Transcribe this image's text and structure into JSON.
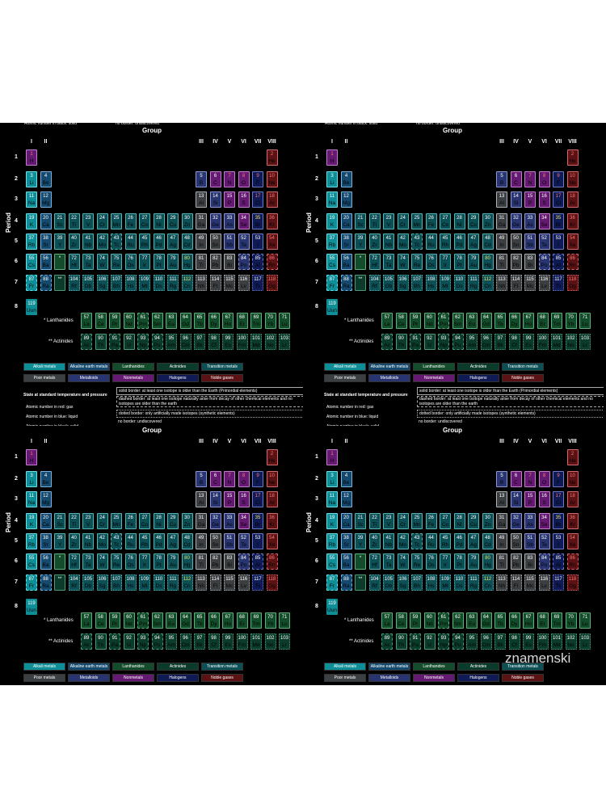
{
  "header": {
    "group_title": "Group",
    "period_title": "Period",
    "top_cut_left": "Atomic number in black: solid",
    "top_cut_right": "no border: undiscovered"
  },
  "groups_left": [
    "I",
    "II"
  ],
  "groups_right": [
    "III",
    "IV",
    "V",
    "VI",
    "VII",
    "VIII"
  ],
  "periods": [
    "1",
    "2",
    "3",
    "4",
    "5",
    "6",
    "7",
    "8"
  ],
  "series_labels": {
    "lanthanides": "* Lanthanides",
    "actinides": "** Actinides"
  },
  "markers": {
    "lan": "*",
    "act": "**"
  },
  "legend": [
    {
      "label": "Alkali metals",
      "type": "alkali"
    },
    {
      "label": "Alkaline earth metals",
      "type": "alkaline"
    },
    {
      "label": "Lanthanides",
      "type": "lan"
    },
    {
      "label": "Actinides",
      "type": "act"
    },
    {
      "label": "Transition metals",
      "type": "trans"
    },
    {
      "label": "Poor metals",
      "type": "poor"
    },
    {
      "label": "Metalloids",
      "type": "metalloid"
    },
    {
      "label": "Nonmetals",
      "type": "nonmetal"
    },
    {
      "label": "Halogens",
      "type": "halogen"
    },
    {
      "label": "Noble gases",
      "type": "noble"
    }
  ],
  "state": {
    "title": "State at standard temperature and pressure",
    "gas": "Atomic number in red: gas",
    "liquid": "Atomic number in blue: liquid",
    "solid": "Atomic number in black: solid"
  },
  "borders": {
    "solid": "solid border: at least one isotope is older than the Earth (Primordial elements)",
    "dashed": "dashed border: at least one isotope naturally arise from decay of other chemical elements and no isotopes are older than the earth",
    "dotted": "dotted border: only artificially made isotopes (synthetic elements)",
    "none": "no border: undiscovered"
  },
  "watermark": "znamenski",
  "colors": {
    "alkali": "#0e8f97",
    "alkaline": "#154a6e",
    "trans": "#0c4f55",
    "lan": "#134c2a",
    "act": "#0b3b2a",
    "poor": "#3c3f42",
    "metalloid": "#283570",
    "nonmetal": "#651a72",
    "halogen": "#101a55",
    "noble": "#5a1214",
    "gas": "#ff7676",
    "liquid": "#a9c2ff",
    "solid": "#ffffff"
  },
  "elements": [
    [
      "1",
      "H",
      "nonmetal",
      "gas",
      "solid"
    ],
    [
      "2",
      "He",
      "noble",
      "gas",
      "solid"
    ],
    [
      "3",
      "Li",
      "alkali",
      "solid",
      "solid"
    ],
    [
      "4",
      "Be",
      "alkaline",
      "solid",
      "solid"
    ],
    [
      "5",
      "B",
      "metalloid",
      "solid",
      "solid"
    ],
    [
      "6",
      "C",
      "nonmetal",
      "solid",
      "solid"
    ],
    [
      "7",
      "N",
      "nonmetal",
      "gas",
      "solid"
    ],
    [
      "8",
      "O",
      "nonmetal",
      "gas",
      "solid"
    ],
    [
      "9",
      "F",
      "halogen",
      "gas",
      "solid"
    ],
    [
      "10",
      "Ne",
      "noble",
      "gas",
      "solid"
    ],
    [
      "11",
      "Na",
      "alkali",
      "solid",
      "solid"
    ],
    [
      "12",
      "Mg",
      "alkaline",
      "solid",
      "solid"
    ],
    [
      "13",
      "Al",
      "poor",
      "solid",
      "solid"
    ],
    [
      "14",
      "Si",
      "metalloid",
      "solid",
      "solid"
    ],
    [
      "15",
      "P",
      "nonmetal",
      "solid",
      "solid"
    ],
    [
      "16",
      "S",
      "nonmetal",
      "solid",
      "solid"
    ],
    [
      "17",
      "Cl",
      "halogen",
      "gas",
      "solid"
    ],
    [
      "18",
      "Ar",
      "noble",
      "gas",
      "solid"
    ],
    [
      "19",
      "K",
      "alkali",
      "solid",
      "solid"
    ],
    [
      "20",
      "Ca",
      "alkaline",
      "solid",
      "solid"
    ],
    [
      "21",
      "Sc",
      "trans",
      "solid",
      "solid"
    ],
    [
      "22",
      "Ti",
      "trans",
      "solid",
      "solid"
    ],
    [
      "23",
      "V",
      "trans",
      "solid",
      "solid"
    ],
    [
      "24",
      "Cr",
      "trans",
      "solid",
      "solid"
    ],
    [
      "25",
      "Mn",
      "trans",
      "solid",
      "solid"
    ],
    [
      "26",
      "Fe",
      "trans",
      "solid",
      "solid"
    ],
    [
      "27",
      "Co",
      "trans",
      "solid",
      "solid"
    ],
    [
      "28",
      "Ni",
      "trans",
      "solid",
      "solid"
    ],
    [
      "29",
      "Cu",
      "trans",
      "solid",
      "solid"
    ],
    [
      "30",
      "Zn",
      "trans",
      "solid",
      "solid"
    ],
    [
      "31",
      "Ga",
      "poor",
      "solid",
      "solid"
    ],
    [
      "32",
      "Ge",
      "metalloid",
      "solid",
      "solid"
    ],
    [
      "33",
      "As",
      "metalloid",
      "solid",
      "solid"
    ],
    [
      "34",
      "Se",
      "nonmetal",
      "solid",
      "solid"
    ],
    [
      "35",
      "Br",
      "halogen",
      "yellow",
      "solid"
    ],
    [
      "36",
      "Kr",
      "noble",
      "gas",
      "solid"
    ],
    [
      "37",
      "Rb",
      "alkali",
      "solid",
      "solid"
    ],
    [
      "38",
      "Sr",
      "alkaline",
      "solid",
      "solid"
    ],
    [
      "39",
      "Y",
      "trans",
      "solid",
      "solid"
    ],
    [
      "40",
      "Zr",
      "trans",
      "solid",
      "solid"
    ],
    [
      "41",
      "Nb",
      "trans",
      "solid",
      "solid"
    ],
    [
      "42",
      "Mo",
      "trans",
      "solid",
      "solid"
    ],
    [
      "43",
      "Tc",
      "trans",
      "solid",
      "dashed"
    ],
    [
      "44",
      "Ru",
      "trans",
      "solid",
      "solid"
    ],
    [
      "45",
      "Rh",
      "trans",
      "solid",
      "solid"
    ],
    [
      "46",
      "Pd",
      "trans",
      "solid",
      "solid"
    ],
    [
      "47",
      "Ag",
      "trans",
      "solid",
      "solid"
    ],
    [
      "48",
      "Cd",
      "trans",
      "solid",
      "solid"
    ],
    [
      "49",
      "In",
      "poor",
      "solid",
      "solid"
    ],
    [
      "50",
      "Sn",
      "poor",
      "solid",
      "solid"
    ],
    [
      "51",
      "Sb",
      "metalloid",
      "solid",
      "solid"
    ],
    [
      "52",
      "Te",
      "metalloid",
      "solid",
      "solid"
    ],
    [
      "53",
      "I",
      "halogen",
      "solid",
      "solid"
    ],
    [
      "54",
      "Xe",
      "noble",
      "gas",
      "solid"
    ],
    [
      "55",
      "Cs",
      "alkali",
      "solid",
      "solid"
    ],
    [
      "56",
      "Ba",
      "alkaline",
      "solid",
      "solid"
    ],
    [
      "*",
      "",
      "lan",
      "solid",
      "solid"
    ],
    [
      "72",
      "Hf",
      "trans",
      "solid",
      "solid"
    ],
    [
      "73",
      "Ta",
      "trans",
      "solid",
      "solid"
    ],
    [
      "74",
      "W",
      "trans",
      "solid",
      "solid"
    ],
    [
      "75",
      "Re",
      "trans",
      "solid",
      "solid"
    ],
    [
      "76",
      "Os",
      "trans",
      "solid",
      "solid"
    ],
    [
      "77",
      "Ir",
      "trans",
      "solid",
      "solid"
    ],
    [
      "78",
      "Pt",
      "trans",
      "solid",
      "solid"
    ],
    [
      "79",
      "Au",
      "trans",
      "solid",
      "solid"
    ],
    [
      "80",
      "Hg",
      "trans",
      "yellow",
      "solid"
    ],
    [
      "81",
      "Tl",
      "poor",
      "solid",
      "solid"
    ],
    [
      "82",
      "Pb",
      "poor",
      "solid",
      "solid"
    ],
    [
      "83",
      "Bi",
      "poor",
      "solid",
      "solid"
    ],
    [
      "84",
      "Po",
      "metalloid",
      "solid",
      "dashed"
    ],
    [
      "85",
      "At",
      "halogen",
      "solid",
      "dashed"
    ],
    [
      "86",
      "Rn",
      "noble",
      "gas",
      "dashed"
    ],
    [
      "87",
      "Fr",
      "alkali",
      "solid",
      "dashed"
    ],
    [
      "88",
      "Ra",
      "alkaline",
      "solid",
      "dashed"
    ],
    [
      "**",
      "",
      "act",
      "solid",
      "solid"
    ],
    [
      "104",
      "Rf",
      "trans",
      "solid",
      "dotted"
    ],
    [
      "105",
      "Db",
      "trans",
      "solid",
      "dotted"
    ],
    [
      "106",
      "Sg",
      "trans",
      "solid",
      "dotted"
    ],
    [
      "107",
      "Bh",
      "trans",
      "solid",
      "dotted"
    ],
    [
      "108",
      "Hs",
      "trans",
      "solid",
      "dotted"
    ],
    [
      "109",
      "Mt",
      "trans",
      "solid",
      "dotted"
    ],
    [
      "110",
      "Ds",
      "trans",
      "solid",
      "dotted"
    ],
    [
      "111",
      "Rg",
      "trans",
      "solid",
      "dotted"
    ],
    [
      "112",
      "Cn",
      "trans",
      "yellow",
      "dotted"
    ],
    [
      "113",
      "Nh",
      "poor",
      "solid",
      "dotted"
    ],
    [
      "114",
      "Fl",
      "poor",
      "solid",
      "dotted"
    ],
    [
      "115",
      "Mc",
      "poor",
      "solid",
      "dotted"
    ],
    [
      "116",
      "Lv",
      "poor",
      "solid",
      "dotted"
    ],
    [
      "117",
      "Ts",
      "halogen",
      "solid",
      "dotted"
    ],
    [
      "118",
      "Og",
      "noble",
      "gas",
      "dotted"
    ],
    [
      "119",
      "Uun",
      "unk",
      "solid",
      "none"
    ],
    [
      "57",
      "La",
      "lan",
      "solid",
      "solid"
    ],
    [
      "58",
      "Ce",
      "lan",
      "solid",
      "solid"
    ],
    [
      "59",
      "Pr",
      "lan",
      "solid",
      "solid"
    ],
    [
      "60",
      "Nd",
      "lan",
      "solid",
      "solid"
    ],
    [
      "61",
      "Pm",
      "lan",
      "solid",
      "dashed"
    ],
    [
      "62",
      "Sm",
      "lan",
      "solid",
      "solid"
    ],
    [
      "63",
      "Eu",
      "lan",
      "solid",
      "solid"
    ],
    [
      "64",
      "Gd",
      "lan",
      "solid",
      "solid"
    ],
    [
      "65",
      "Tb",
      "lan",
      "solid",
      "solid"
    ],
    [
      "66",
      "Dy",
      "lan",
      "solid",
      "solid"
    ],
    [
      "67",
      "Ho",
      "lan",
      "solid",
      "solid"
    ],
    [
      "68",
      "Er",
      "lan",
      "solid",
      "solid"
    ],
    [
      "69",
      "Tm",
      "lan",
      "solid",
      "solid"
    ],
    [
      "70",
      "Yb",
      "lan",
      "solid",
      "solid"
    ],
    [
      "71",
      "Lu",
      "lan",
      "solid",
      "solid"
    ],
    [
      "89",
      "Ac",
      "act",
      "solid",
      "dashed"
    ],
    [
      "90",
      "Th",
      "act",
      "solid",
      "solid"
    ],
    [
      "91",
      "Pa",
      "act",
      "solid",
      "dashed"
    ],
    [
      "92",
      "U",
      "act",
      "solid",
      "solid"
    ],
    [
      "93",
      "Np",
      "act",
      "solid",
      "dashed"
    ],
    [
      "94",
      "Pu",
      "act",
      "solid",
      "dashed"
    ],
    [
      "95",
      "Am",
      "act",
      "solid",
      "dotted"
    ],
    [
      "96",
      "Cm",
      "act",
      "solid",
      "dotted"
    ],
    [
      "97",
      "Bk",
      "act",
      "solid",
      "dotted"
    ],
    [
      "98",
      "Cf",
      "act",
      "solid",
      "dotted"
    ],
    [
      "99",
      "Es",
      "act",
      "solid",
      "dotted"
    ],
    [
      "100",
      "Fm",
      "act",
      "solid",
      "dotted"
    ],
    [
      "101",
      "Md",
      "act",
      "solid",
      "dotted"
    ],
    [
      "102",
      "No",
      "act",
      "solid",
      "dotted"
    ],
    [
      "103",
      "Lr",
      "act",
      "solid",
      "dotted"
    ]
  ]
}
